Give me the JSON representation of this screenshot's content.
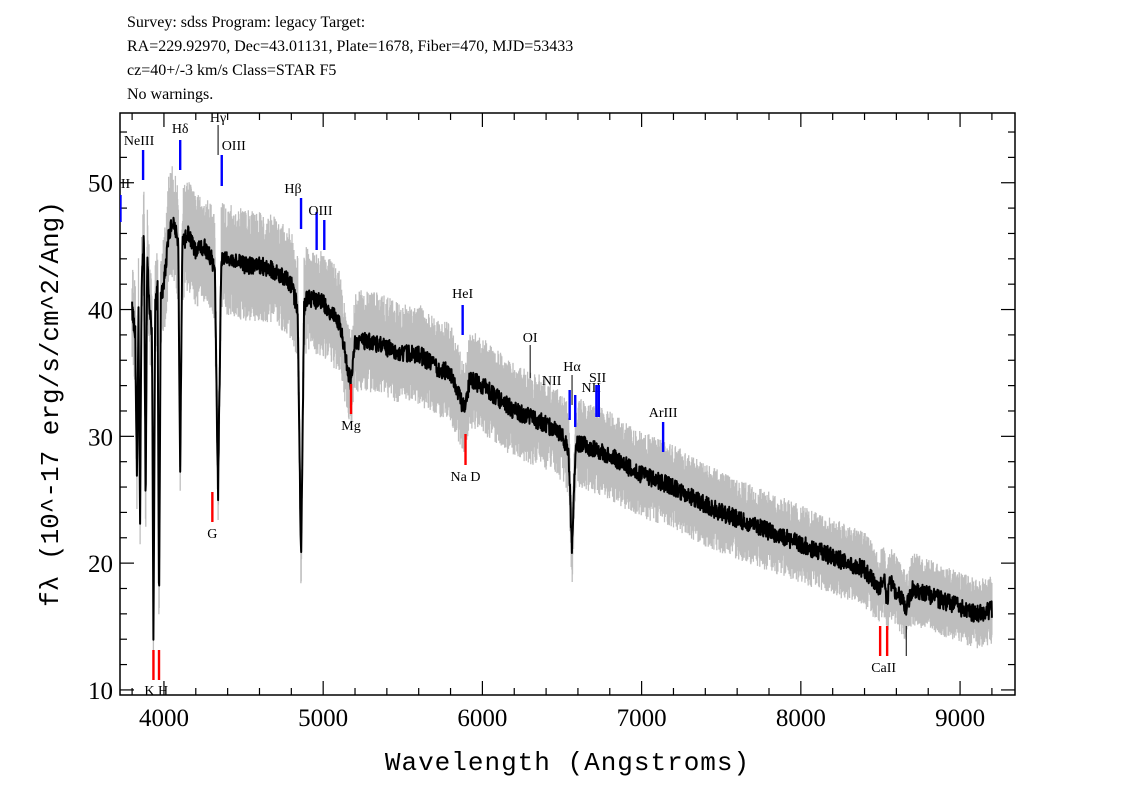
{
  "header": {
    "line1": "Survey: sdss Program: legacy Target:",
    "line2": "RA=229.92970, Dec=43.01131, Plate=1678, Fiber=470, MJD=53433",
    "line3": "cz=40+/-3 km/s Class=STAR F5",
    "line4": "No warnings."
  },
  "chart_data": {
    "type": "line",
    "title": "",
    "xlabel": "Wavelength (Angstroms)",
    "ylabel": "fλ (10^-17 erg/s/cm^2/Ang)",
    "xlim": [
      3724,
      9345
    ],
    "ylim": [
      9.6,
      55.5
    ],
    "xticks": [
      4000,
      5000,
      6000,
      7000,
      8000,
      9000
    ],
    "yticks": [
      10,
      20,
      30,
      40,
      50
    ],
    "colors": {
      "flux": "#000000",
      "error": "#bebebe",
      "emission": "#0000ff",
      "absorption": "#ff0000",
      "sky": "#000000"
    },
    "flux": [
      [
        3800,
        40
      ],
      [
        3820,
        38
      ],
      [
        3830,
        26.6
      ],
      [
        3840,
        40
      ],
      [
        3850,
        23.4
      ],
      [
        3860,
        42
      ],
      [
        3875,
        46
      ],
      [
        3885,
        24
      ],
      [
        3895,
        44
      ],
      [
        3910,
        40
      ],
      [
        3925,
        38
      ],
      [
        3934,
        14.3
      ],
      [
        3945,
        40
      ],
      [
        3960,
        42
      ],
      [
        3969,
        15.9
      ],
      [
        3980,
        41
      ],
      [
        4000,
        42
      ],
      [
        4030,
        46
      ],
      [
        4060,
        47
      ],
      [
        4090,
        45
      ],
      [
        4102,
        27.4
      ],
      [
        4115,
        45
      ],
      [
        4150,
        46
      ],
      [
        4200,
        44.5
      ],
      [
        4250,
        45
      ],
      [
        4300,
        44
      ],
      [
        4320,
        43
      ],
      [
        4340,
        25.4
      ],
      [
        4360,
        44
      ],
      [
        4400,
        44
      ],
      [
        4500,
        43.5
      ],
      [
        4600,
        43.5
      ],
      [
        4700,
        43
      ],
      [
        4800,
        42
      ],
      [
        4840,
        40
      ],
      [
        4861,
        19.9
      ],
      [
        4880,
        40
      ],
      [
        4900,
        41
      ],
      [
        5000,
        40.5
      ],
      [
        5100,
        39
      ],
      [
        5175,
        34
      ],
      [
        5200,
        37.5
      ],
      [
        5300,
        37.5
      ],
      [
        5400,
        37
      ],
      [
        5500,
        36.5
      ],
      [
        5600,
        36.5
      ],
      [
        5700,
        35.5
      ],
      [
        5800,
        35
      ],
      [
        5890,
        32
      ],
      [
        5920,
        34.5
      ],
      [
        6000,
        34
      ],
      [
        6100,
        33
      ],
      [
        6200,
        32
      ],
      [
        6300,
        31.5
      ],
      [
        6400,
        31
      ],
      [
        6500,
        30
      ],
      [
        6540,
        29
      ],
      [
        6563,
        21
      ],
      [
        6585,
        29
      ],
      [
        6600,
        29.5
      ],
      [
        6700,
        29
      ],
      [
        6800,
        28.5
      ],
      [
        6900,
        27.7
      ],
      [
        7000,
        27
      ],
      [
        7100,
        26.5
      ],
      [
        7200,
        26
      ],
      [
        7300,
        25.3
      ],
      [
        7400,
        24.6
      ],
      [
        7500,
        24
      ],
      [
        7600,
        23.5
      ],
      [
        7700,
        23
      ],
      [
        7800,
        22.5
      ],
      [
        7900,
        22
      ],
      [
        8000,
        21.5
      ],
      [
        8100,
        21
      ],
      [
        8200,
        20.5
      ],
      [
        8300,
        20
      ],
      [
        8400,
        19.5
      ],
      [
        8498,
        18
      ],
      [
        8520,
        19
      ],
      [
        8542,
        17
      ],
      [
        8560,
        18.5
      ],
      [
        8662,
        16.5
      ],
      [
        8700,
        18
      ],
      [
        8800,
        17.5
      ],
      [
        8900,
        17
      ],
      [
        9000,
        16.5
      ],
      [
        9100,
        16
      ],
      [
        9200,
        16.3
      ]
    ],
    "lines": [
      {
        "label": "OII",
        "wavelengths": [
          3727
        ],
        "kind": "emission"
      },
      {
        "label": "NeIII",
        "wavelengths": [
          3869
        ],
        "kind": "emission"
      },
      {
        "label": "Hδ",
        "wavelengths": [
          4102
        ],
        "kind": "emission"
      },
      {
        "label": "Hγ",
        "wavelengths": [
          4340
        ],
        "kind": "sky"
      },
      {
        "label": "OIII",
        "wavelengths": [
          4363
        ],
        "kind": "emission"
      },
      {
        "label": "Hβ",
        "wavelengths": [
          4861
        ],
        "kind": "emission"
      },
      {
        "label": "OIII",
        "wavelengths": [
          4959,
          5007
        ],
        "kind": "emission"
      },
      {
        "label": "HeI",
        "wavelengths": [
          5876
        ],
        "kind": "emission"
      },
      {
        "label": "OI",
        "wavelengths": [
          6300
        ],
        "kind": "sky"
      },
      {
        "label": "NII",
        "wavelengths": [
          6548
        ],
        "kind": "emission"
      },
      {
        "label": "Hα",
        "wavelengths": [
          6563
        ],
        "kind": "sky"
      },
      {
        "label": "NII",
        "wavelengths": [
          6583
        ],
        "kind": "emission"
      },
      {
        "label": "SII",
        "wavelengths": [
          6716,
          6731
        ],
        "kind": "emission"
      },
      {
        "label": "ArIII",
        "wavelengths": [
          7135
        ],
        "kind": "emission"
      },
      {
        "label": "K H",
        "wavelengths": [
          3934,
          3969
        ],
        "kind": "absorption"
      },
      {
        "label": "G",
        "wavelengths": [
          4304
        ],
        "kind": "absorption"
      },
      {
        "label": "Mg",
        "wavelengths": [
          5175
        ],
        "kind": "absorption"
      },
      {
        "label": "Na D",
        "wavelengths": [
          5894
        ],
        "kind": "absorption"
      },
      {
        "label": "CaII",
        "wavelengths": [
          8498,
          8542
        ],
        "kind": "absorption"
      },
      {
        "label": "",
        "wavelengths": [
          8662
        ],
        "kind": "sky"
      }
    ]
  }
}
